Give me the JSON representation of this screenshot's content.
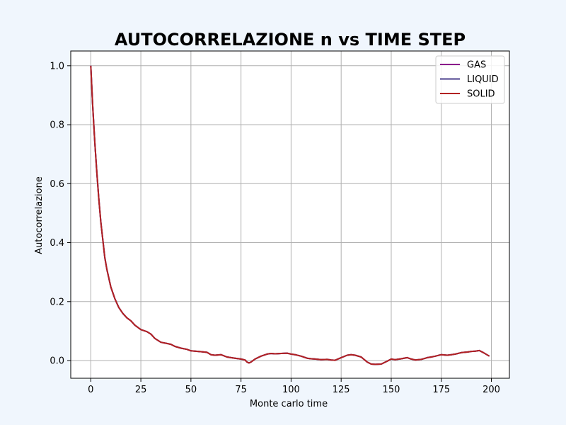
{
  "chart_data": {
    "type": "line",
    "title": "AUTOCORRELAZIONE n vs TIME STEP",
    "xlabel": "Monte carlo time",
    "ylabel": "Autocorrelazione",
    "xlim": [
      -10,
      209
    ],
    "ylim": [
      -0.06,
      1.05
    ],
    "xticks": [
      0,
      25,
      50,
      75,
      100,
      125,
      150,
      175,
      200
    ],
    "yticks": [
      0.0,
      0.2,
      0.4,
      0.6,
      0.8,
      1.0
    ],
    "xtick_labels": [
      "0",
      "25",
      "50",
      "75",
      "100",
      "125",
      "150",
      "175",
      "200"
    ],
    "ytick_labels": [
      "0.0",
      "0.2",
      "0.4",
      "0.6",
      "0.8",
      "1.0"
    ],
    "grid": true,
    "legend_position": "top-right",
    "x": [
      0,
      1,
      2,
      3,
      4,
      5,
      6,
      7,
      8,
      9,
      10,
      12,
      14,
      16,
      18,
      20,
      22,
      25,
      28,
      30,
      32,
      35,
      38,
      40,
      42,
      45,
      48,
      50,
      52,
      55,
      58,
      60,
      62,
      65,
      68,
      70,
      72,
      75,
      77,
      78,
      79,
      80,
      82,
      85,
      88,
      90,
      92,
      95,
      98,
      100,
      102,
      105,
      108,
      110,
      112,
      115,
      118,
      120,
      122,
      125,
      128,
      130,
      132,
      135,
      138,
      140,
      142,
      145,
      148,
      150,
      152,
      155,
      158,
      160,
      162,
      165,
      168,
      170,
      172,
      175,
      178,
      180,
      182,
      185,
      188,
      190,
      192,
      194,
      196,
      199
    ],
    "series": [
      {
        "name": "GAS",
        "color": "#8b008b",
        "y": [
          1.0,
          0.86,
          0.74,
          0.64,
          0.55,
          0.47,
          0.41,
          0.35,
          0.31,
          0.28,
          0.25,
          0.21,
          0.18,
          0.16,
          0.145,
          0.135,
          0.12,
          0.105,
          0.098,
          0.09,
          0.075,
          0.062,
          0.058,
          0.055,
          0.048,
          0.042,
          0.038,
          0.033,
          0.032,
          0.03,
          0.028,
          0.02,
          0.018,
          0.02,
          0.012,
          0.01,
          0.008,
          0.005,
          0.002,
          -0.005,
          -0.008,
          -0.005,
          0.005,
          0.015,
          0.022,
          0.024,
          0.023,
          0.024,
          0.025,
          0.022,
          0.02,
          0.015,
          0.008,
          0.006,
          0.005,
          0.003,
          0.004,
          0.002,
          0.001,
          0.01,
          0.018,
          0.02,
          0.018,
          0.012,
          -0.005,
          -0.012,
          -0.013,
          -0.012,
          -0.002,
          0.005,
          0.003,
          0.006,
          0.01,
          0.005,
          0.002,
          0.004,
          0.01,
          0.012,
          0.015,
          0.02,
          0.018,
          0.02,
          0.022,
          0.027,
          0.029,
          0.031,
          0.032,
          0.034,
          0.027,
          0.015
        ]
      },
      {
        "name": "LIQUID",
        "color": "#483d8b",
        "y": [
          1.0,
          0.86,
          0.74,
          0.64,
          0.55,
          0.47,
          0.41,
          0.35,
          0.31,
          0.28,
          0.25,
          0.21,
          0.18,
          0.16,
          0.145,
          0.135,
          0.12,
          0.105,
          0.098,
          0.09,
          0.075,
          0.062,
          0.058,
          0.055,
          0.048,
          0.042,
          0.038,
          0.033,
          0.032,
          0.03,
          0.028,
          0.02,
          0.018,
          0.02,
          0.012,
          0.01,
          0.008,
          0.005,
          0.002,
          -0.005,
          -0.008,
          -0.005,
          0.005,
          0.015,
          0.022,
          0.024,
          0.023,
          0.024,
          0.025,
          0.022,
          0.02,
          0.015,
          0.008,
          0.006,
          0.005,
          0.003,
          0.004,
          0.002,
          0.001,
          0.01,
          0.018,
          0.02,
          0.018,
          0.012,
          -0.005,
          -0.012,
          -0.013,
          -0.012,
          -0.002,
          0.005,
          0.003,
          0.006,
          0.01,
          0.005,
          0.002,
          0.004,
          0.01,
          0.012,
          0.015,
          0.02,
          0.018,
          0.02,
          0.022,
          0.027,
          0.029,
          0.031,
          0.032,
          0.034,
          0.027,
          0.015
        ]
      },
      {
        "name": "SOLID",
        "color": "#b22222",
        "y": [
          1.0,
          0.86,
          0.74,
          0.64,
          0.55,
          0.47,
          0.41,
          0.35,
          0.31,
          0.28,
          0.25,
          0.21,
          0.18,
          0.16,
          0.145,
          0.135,
          0.12,
          0.105,
          0.098,
          0.09,
          0.075,
          0.062,
          0.058,
          0.055,
          0.048,
          0.042,
          0.038,
          0.033,
          0.032,
          0.03,
          0.028,
          0.02,
          0.018,
          0.02,
          0.012,
          0.01,
          0.008,
          0.005,
          0.002,
          -0.005,
          -0.008,
          -0.005,
          0.005,
          0.015,
          0.022,
          0.024,
          0.023,
          0.024,
          0.025,
          0.022,
          0.02,
          0.015,
          0.008,
          0.006,
          0.005,
          0.003,
          0.004,
          0.002,
          0.001,
          0.01,
          0.018,
          0.02,
          0.018,
          0.012,
          -0.005,
          -0.012,
          -0.013,
          -0.012,
          -0.002,
          0.005,
          0.003,
          0.006,
          0.01,
          0.005,
          0.002,
          0.004,
          0.01,
          0.012,
          0.015,
          0.02,
          0.018,
          0.02,
          0.022,
          0.027,
          0.029,
          0.031,
          0.032,
          0.034,
          0.027,
          0.015
        ]
      }
    ]
  }
}
